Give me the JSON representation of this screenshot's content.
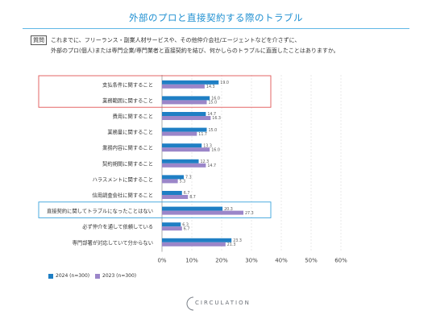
{
  "page": {
    "title": "外部のプロと直接契約する際のトラブル",
    "question_label": "質問",
    "question_line1": "これまでに、フリーランス・副業人材サービスや、その他仲介会社/エージェントなどを介さずに、",
    "question_line2": "外部のプロ(個人)または専門企業/専門業者と直接契約を結び、何かしらのトラブルに直面したことはありますか。",
    "logo_text": "CIRCULATION"
  },
  "colors": {
    "series_2024": "#1f7fc4",
    "series_2023": "#9b86c9",
    "highlight_red": "#e05555",
    "highlight_blue": "#3aa3dc",
    "title_blue": "#1e8fd1"
  },
  "chart_data": {
    "type": "bar",
    "orientation": "horizontal",
    "categories": [
      "支払条件に関すること",
      "業務範囲に関すること",
      "費用に関すること",
      "業務量に関すること",
      "業務内容に関すること",
      "契約期間に関すること",
      "ハラスメントに関すること",
      "信用調査会社に関すること",
      "直接契約に関してトラブルになったことはない",
      "必ず仲介を通して依頼している",
      "専門部署が対応していて分からない"
    ],
    "series": [
      {
        "name": "2024 (n=300)",
        "values": [
          19.0,
          16.0,
          14.7,
          15.0,
          13.3,
          12.3,
          7.3,
          6.7,
          20.3,
          6.3,
          23.3
        ]
      },
      {
        "name": "2023 (n=300)",
        "values": [
          14.3,
          15.0,
          16.3,
          11.7,
          16.0,
          14.7,
          5.3,
          8.7,
          27.3,
          6.7,
          21.3
        ]
      }
    ],
    "value_labels": [
      [
        "19.0",
        "14.3"
      ],
      [
        "16.0",
        "15.0"
      ],
      [
        "14.7",
        "16.3"
      ],
      [
        "15.0",
        "11.7"
      ],
      [
        "13.3",
        "16.0"
      ],
      [
        "12.3",
        "14.7"
      ],
      [
        "7.3",
        "5.3"
      ],
      [
        "6.7",
        "8.7"
      ],
      [
        "20.3",
        "27.3"
      ],
      [
        "6.3",
        "6.7"
      ],
      [
        "23.3",
        "21.3"
      ]
    ],
    "x_ticks": [
      "0%",
      "10%",
      "20%",
      "30%",
      "40%",
      "50%",
      "60%"
    ],
    "xlim": [
      0,
      60
    ],
    "grid": true,
    "legend_position": "bottom-left",
    "highlighted_groups": [
      {
        "categories": [
          0,
          1
        ],
        "color": "red"
      },
      {
        "categories": [
          8
        ],
        "color": "blue"
      }
    ]
  }
}
